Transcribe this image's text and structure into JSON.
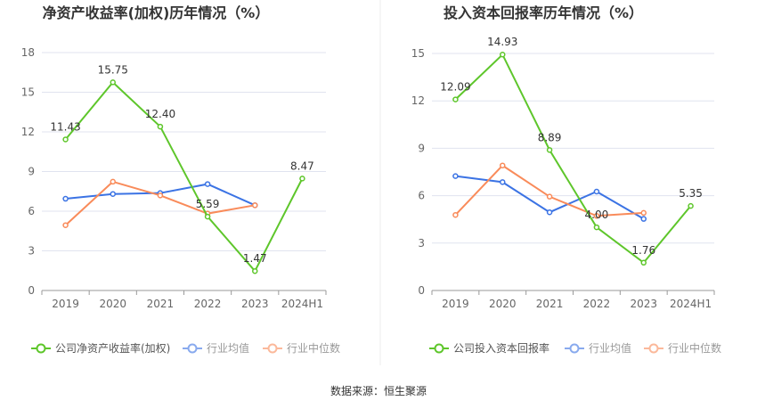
{
  "chart_data": [
    {
      "type": "line",
      "title": "净资产收益率(加权)历年情况（%）",
      "categories": [
        "2019",
        "2020",
        "2021",
        "2022",
        "2023",
        "2024H1"
      ],
      "ylim": [
        0,
        18
      ],
      "yticks": [
        0,
        3,
        6,
        9,
        12,
        15,
        18
      ],
      "grid": true,
      "legend_position": "bottom",
      "series": [
        {
          "name": "公司净资产收益率(加权)",
          "color": "#5ec62b",
          "values": [
            11.43,
            15.75,
            12.4,
            5.59,
            1.47,
            8.47
          ],
          "labels": [
            "11.43",
            "15.75",
            "12.40",
            "5.59",
            "1.47",
            "8.47"
          ]
        },
        {
          "name": "行业均值",
          "color": "#3b73e4",
          "values": [
            6.94,
            7.3,
            7.37,
            8.05,
            6.45,
            null
          ]
        },
        {
          "name": "行业中位数",
          "color": "#f98b5a",
          "values": [
            4.94,
            8.23,
            7.19,
            5.82,
            6.45,
            null
          ]
        }
      ]
    },
    {
      "type": "line",
      "title": "投入资本回报率历年情况（%）",
      "categories": [
        "2019",
        "2020",
        "2021",
        "2022",
        "2023",
        "2024H1"
      ],
      "ylim": [
        0,
        15
      ],
      "yticks": [
        0,
        3,
        6,
        9,
        12,
        15
      ],
      "grid": true,
      "legend_position": "bottom",
      "series": [
        {
          "name": "公司投入资本回报率",
          "color": "#5ec62b",
          "values": [
            12.09,
            14.93,
            8.89,
            4.0,
            1.76,
            5.35
          ],
          "labels": [
            "12.09",
            "14.93",
            "8.89",
            "4.00",
            "1.76",
            "5.35"
          ]
        },
        {
          "name": "行业均值",
          "color": "#3b73e4",
          "values": [
            7.24,
            6.86,
            4.95,
            6.26,
            4.53,
            null
          ]
        },
        {
          "name": "行业中位数",
          "color": "#f98b5a",
          "values": [
            4.78,
            7.91,
            5.94,
            4.72,
            4.91,
            null
          ]
        }
      ]
    }
  ],
  "source": "数据来源：恒生聚源"
}
